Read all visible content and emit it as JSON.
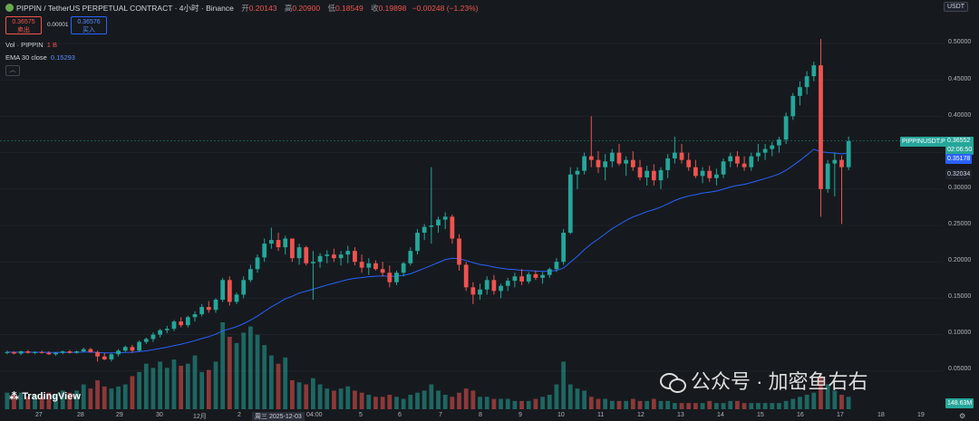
{
  "header": {
    "symbol": "PIPPIN / TetherUS PERPETUAL CONTRACT · 4小时 · Binance",
    "open_label": "开",
    "open": "0.20143",
    "high_label": "高",
    "high": "0.20900",
    "low_label": "低",
    "low": "0.18549",
    "close_label": "收",
    "close": "0.19898",
    "change": "−0.00248 (−1.23%)"
  },
  "trade": {
    "sell_price": "0.36575",
    "sell_label": "卖出",
    "spread": "0.00001",
    "buy_price": "0.36576",
    "buy_label": "买入"
  },
  "indicators": {
    "vol_label": "Vol · PIPPIN",
    "vol_value": "1 B",
    "ema_label": "EMA 30 close",
    "ema_value": "0.15293"
  },
  "collapse_icon": "chevron-up-icon",
  "currency": "USDT",
  "brand": "TradingView",
  "watermark": "公众号 · 加密鱼右右",
  "y_axis": {
    "ticks": [
      "0.50000",
      "0.45000",
      "0.40000",
      "0.35000",
      "0.30000",
      "0.25000",
      "0.20000",
      "0.15000",
      "0.10000",
      "0.05000"
    ],
    "last_price_tag": "PIPPINUSDT.P",
    "last_price": "0.36552",
    "countdown": "02:06:50",
    "ema_tag": "0.35178",
    "level_tag": "0.32034",
    "volume_tag": "148.63M"
  },
  "x_axis": {
    "ticks": [
      "27",
      "28",
      "29",
      "30",
      "12月",
      "2",
      "周三 2025-12-03",
      "04:00",
      "5",
      "6",
      "7",
      "8",
      "9",
      "10",
      "11",
      "12",
      "13",
      "14",
      "15",
      "16",
      "17",
      "18",
      "19"
    ]
  },
  "colors": {
    "up": "#26a69a",
    "down": "#ef5350",
    "ema": "#2962ff",
    "bg": "#161a1e"
  },
  "chart_data": {
    "type": "candlestick",
    "title": "PIPPIN / TetherUS PERPETUAL CONTRACT · 4小时 · Binance",
    "ylim": [
      0.0,
      0.52
    ],
    "candles": [
      [
        0.075,
        0.078,
        0.073,
        0.076
      ],
      [
        0.076,
        0.077,
        0.073,
        0.074
      ],
      [
        0.074,
        0.078,
        0.072,
        0.077
      ],
      [
        0.077,
        0.079,
        0.074,
        0.075
      ],
      [
        0.075,
        0.077,
        0.073,
        0.076
      ],
      [
        0.076,
        0.078,
        0.074,
        0.075
      ],
      [
        0.075,
        0.077,
        0.072,
        0.073
      ],
      [
        0.073,
        0.076,
        0.071,
        0.075
      ],
      [
        0.075,
        0.078,
        0.073,
        0.077
      ],
      [
        0.077,
        0.079,
        0.074,
        0.075
      ],
      [
        0.075,
        0.078,
        0.074,
        0.077
      ],
      [
        0.077,
        0.082,
        0.076,
        0.08
      ],
      [
        0.08,
        0.082,
        0.075,
        0.076
      ],
      [
        0.076,
        0.078,
        0.063,
        0.07
      ],
      [
        0.07,
        0.075,
        0.065,
        0.066
      ],
      [
        0.066,
        0.075,
        0.063,
        0.073
      ],
      [
        0.073,
        0.08,
        0.07,
        0.078
      ],
      [
        0.078,
        0.085,
        0.076,
        0.083
      ],
      [
        0.083,
        0.086,
        0.075,
        0.078
      ],
      [
        0.078,
        0.092,
        0.077,
        0.09
      ],
      [
        0.09,
        0.096,
        0.087,
        0.094
      ],
      [
        0.094,
        0.103,
        0.09,
        0.1
      ],
      [
        0.1,
        0.108,
        0.096,
        0.106
      ],
      [
        0.106,
        0.112,
        0.102,
        0.108
      ],
      [
        0.108,
        0.12,
        0.105,
        0.118
      ],
      [
        0.118,
        0.124,
        0.11,
        0.113
      ],
      [
        0.113,
        0.126,
        0.11,
        0.124
      ],
      [
        0.124,
        0.132,
        0.118,
        0.128
      ],
      [
        0.128,
        0.142,
        0.125,
        0.138
      ],
      [
        0.138,
        0.146,
        0.13,
        0.134
      ],
      [
        0.134,
        0.15,
        0.13,
        0.148
      ],
      [
        0.148,
        0.178,
        0.145,
        0.175
      ],
      [
        0.175,
        0.18,
        0.14,
        0.145
      ],
      [
        0.145,
        0.158,
        0.142,
        0.155
      ],
      [
        0.155,
        0.18,
        0.15,
        0.175
      ],
      [
        0.175,
        0.196,
        0.172,
        0.19
      ],
      [
        0.19,
        0.21,
        0.185,
        0.206
      ],
      [
        0.206,
        0.232,
        0.2,
        0.225
      ],
      [
        0.225,
        0.247,
        0.218,
        0.23
      ],
      [
        0.23,
        0.24,
        0.215,
        0.22
      ],
      [
        0.22,
        0.236,
        0.21,
        0.232
      ],
      [
        0.232,
        0.23,
        0.2,
        0.205
      ],
      [
        0.205,
        0.225,
        0.196,
        0.22
      ],
      [
        0.22,
        0.222,
        0.195,
        0.198
      ],
      [
        0.198,
        0.215,
        0.148,
        0.2
      ],
      [
        0.2,
        0.212,
        0.192,
        0.208
      ],
      [
        0.208,
        0.216,
        0.198,
        0.21
      ],
      [
        0.21,
        0.218,
        0.2,
        0.205
      ],
      [
        0.205,
        0.215,
        0.195,
        0.21
      ],
      [
        0.21,
        0.222,
        0.198,
        0.215
      ],
      [
        0.215,
        0.22,
        0.195,
        0.2
      ],
      [
        0.2,
        0.21,
        0.185,
        0.192
      ],
      [
        0.192,
        0.205,
        0.182,
        0.198
      ],
      [
        0.198,
        0.202,
        0.188,
        0.19
      ],
      [
        0.19,
        0.2,
        0.18,
        0.185
      ],
      [
        0.185,
        0.195,
        0.165,
        0.172
      ],
      [
        0.172,
        0.188,
        0.168,
        0.185
      ],
      [
        0.185,
        0.2,
        0.18,
        0.198
      ],
      [
        0.198,
        0.22,
        0.195,
        0.215
      ],
      [
        0.215,
        0.245,
        0.21,
        0.24
      ],
      [
        0.24,
        0.252,
        0.23,
        0.248
      ],
      [
        0.248,
        0.33,
        0.225,
        0.25
      ],
      [
        0.25,
        0.262,
        0.24,
        0.258
      ],
      [
        0.258,
        0.268,
        0.245,
        0.262
      ],
      [
        0.262,
        0.265,
        0.225,
        0.232
      ],
      [
        0.232,
        0.238,
        0.188,
        0.196
      ],
      [
        0.196,
        0.2,
        0.16,
        0.165
      ],
      [
        0.165,
        0.172,
        0.142,
        0.155
      ],
      [
        0.155,
        0.17,
        0.148,
        0.162
      ],
      [
        0.162,
        0.18,
        0.155,
        0.175
      ],
      [
        0.175,
        0.182,
        0.155,
        0.16
      ],
      [
        0.16,
        0.17,
        0.15,
        0.167
      ],
      [
        0.167,
        0.178,
        0.16,
        0.174
      ],
      [
        0.174,
        0.185,
        0.165,
        0.18
      ],
      [
        0.18,
        0.19,
        0.168,
        0.173
      ],
      [
        0.173,
        0.186,
        0.17,
        0.183
      ],
      [
        0.183,
        0.188,
        0.175,
        0.178
      ],
      [
        0.178,
        0.186,
        0.17,
        0.182
      ],
      [
        0.182,
        0.192,
        0.178,
        0.19
      ],
      [
        0.19,
        0.205,
        0.186,
        0.2
      ],
      [
        0.2,
        0.245,
        0.196,
        0.24
      ],
      [
        0.24,
        0.33,
        0.238,
        0.32
      ],
      [
        0.32,
        0.33,
        0.3,
        0.325
      ],
      [
        0.325,
        0.35,
        0.32,
        0.345
      ],
      [
        0.345,
        0.4,
        0.33,
        0.34
      ],
      [
        0.34,
        0.352,
        0.322,
        0.33
      ],
      [
        0.33,
        0.348,
        0.312,
        0.338
      ],
      [
        0.338,
        0.355,
        0.33,
        0.35
      ],
      [
        0.35,
        0.362,
        0.332,
        0.335
      ],
      [
        0.335,
        0.345,
        0.318,
        0.34
      ],
      [
        0.34,
        0.352,
        0.325,
        0.33
      ],
      [
        0.33,
        0.34,
        0.312,
        0.316
      ],
      [
        0.316,
        0.332,
        0.305,
        0.325
      ],
      [
        0.325,
        0.334,
        0.305,
        0.312
      ],
      [
        0.312,
        0.33,
        0.3,
        0.326
      ],
      [
        0.326,
        0.348,
        0.315,
        0.342
      ],
      [
        0.342,
        0.372,
        0.335,
        0.35
      ],
      [
        0.35,
        0.362,
        0.335,
        0.34
      ],
      [
        0.34,
        0.35,
        0.325,
        0.33
      ],
      [
        0.33,
        0.34,
        0.315,
        0.318
      ],
      [
        0.318,
        0.33,
        0.308,
        0.325
      ],
      [
        0.325,
        0.332,
        0.31,
        0.315
      ],
      [
        0.315,
        0.328,
        0.305,
        0.32
      ],
      [
        0.32,
        0.342,
        0.315,
        0.338
      ],
      [
        0.338,
        0.35,
        0.33,
        0.345
      ],
      [
        0.345,
        0.352,
        0.33,
        0.335
      ],
      [
        0.335,
        0.345,
        0.325,
        0.33
      ],
      [
        0.33,
        0.35,
        0.325,
        0.345
      ],
      [
        0.345,
        0.362,
        0.338,
        0.35
      ],
      [
        0.35,
        0.362,
        0.34,
        0.355
      ],
      [
        0.355,
        0.365,
        0.345,
        0.36
      ],
      [
        0.36,
        0.372,
        0.35,
        0.368
      ],
      [
        0.368,
        0.405,
        0.362,
        0.4
      ],
      [
        0.4,
        0.432,
        0.395,
        0.428
      ],
      [
        0.428,
        0.448,
        0.415,
        0.44
      ],
      [
        0.44,
        0.462,
        0.43,
        0.455
      ],
      [
        0.455,
        0.475,
        0.448,
        0.47
      ],
      [
        0.47,
        0.506,
        0.262,
        0.3
      ],
      [
        0.3,
        0.34,
        0.295,
        0.335
      ],
      [
        0.335,
        0.35,
        0.29,
        0.34
      ],
      [
        0.34,
        0.346,
        0.252,
        0.33
      ],
      [
        0.33,
        0.372,
        0.326,
        0.366
      ]
    ],
    "volumes": [
      0.8,
      0.7,
      0.8,
      0.6,
      0.7,
      0.6,
      0.8,
      0.7,
      0.9,
      0.8,
      0.9,
      1.2,
      1.0,
      1.4,
      1.1,
      1.0,
      1.1,
      1.2,
      1.6,
      1.8,
      2.2,
      2.0,
      2.3,
      2.0,
      2.4,
      2.1,
      2.2,
      2.6,
      1.8,
      1.9,
      2.3,
      4.2,
      3.5,
      3.2,
      3.7,
      4.0,
      3.6,
      3.1,
      2.6,
      2.2,
      2.5,
      1.4,
      1.3,
      1.2,
      1.5,
      1.2,
      1.0,
      0.9,
      1.0,
      1.1,
      0.9,
      0.8,
      0.7,
      0.6,
      0.6,
      0.7,
      0.6,
      0.5,
      0.7,
      0.8,
      0.9,
      1.2,
      0.9,
      0.7,
      0.6,
      0.8,
      1.0,
      0.9,
      0.6,
      0.6,
      0.5,
      0.5,
      0.5,
      0.4,
      0.4,
      0.4,
      0.5,
      0.6,
      0.7,
      1.2,
      2.3,
      1.2,
      1.0,
      0.9,
      0.6,
      0.5,
      0.5,
      0.4,
      0.4,
      0.4,
      0.5,
      0.4,
      0.4,
      0.5,
      0.4,
      0.4,
      0.3,
      0.3,
      0.3,
      0.3,
      0.3,
      0.4,
      0.3,
      0.3,
      0.4,
      0.4,
      0.3,
      0.3,
      0.3,
      0.3,
      0.3,
      0.3,
      0.4,
      0.5,
      0.6,
      0.7,
      0.8,
      1.6,
      1.2,
      0.9,
      0.7,
      0.6
    ]
  }
}
